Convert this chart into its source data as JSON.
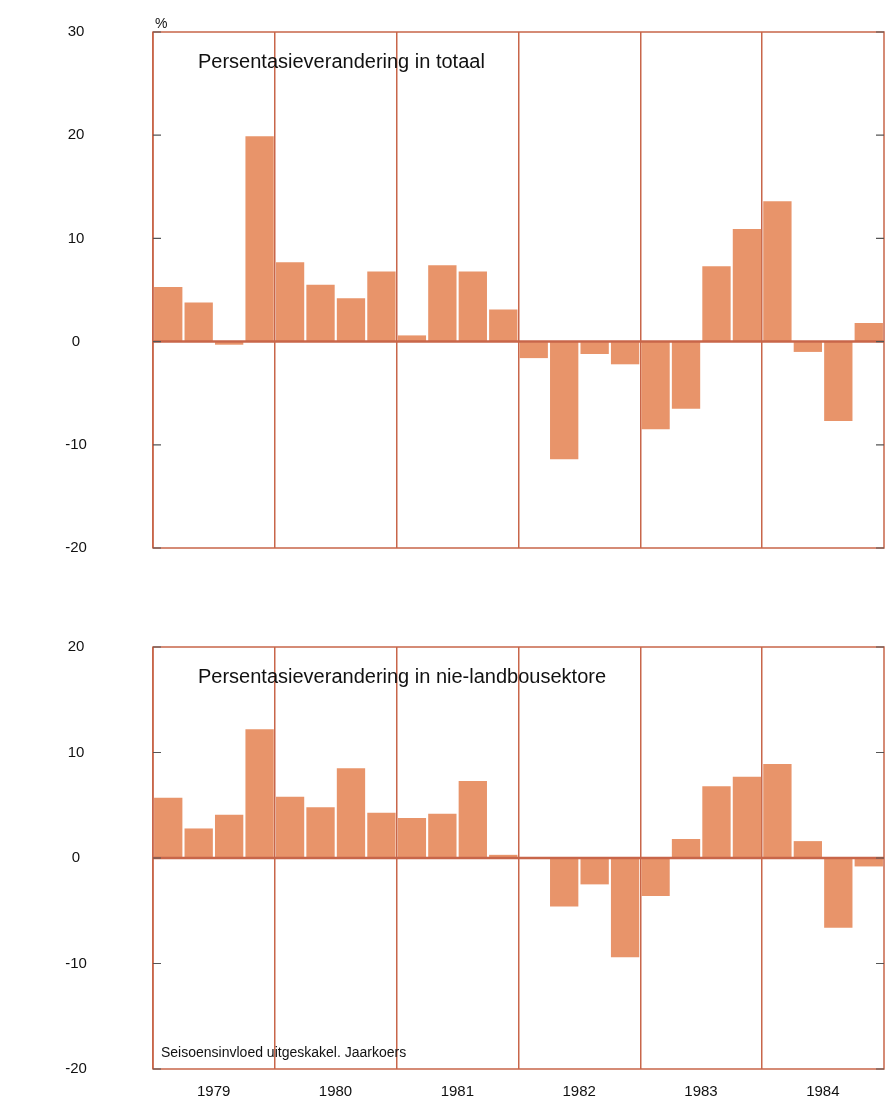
{
  "chart_data": [
    {
      "type": "bar",
      "title": "Persentasieverandering in totaal",
      "ylabel": "%",
      "categories": [
        null,
        "1979",
        null,
        null,
        null,
        "1980",
        null,
        null,
        null,
        "1981",
        null,
        null,
        null,
        "1982",
        null,
        null,
        null,
        "1983",
        null,
        null,
        null,
        "1984",
        null,
        null
      ],
      "values": [
        5.3,
        3.8,
        -0.3,
        19.9,
        7.7,
        5.5,
        4.2,
        6.8,
        0.6,
        7.4,
        6.8,
        3.1,
        -1.6,
        -11.4,
        -1.2,
        -2.2,
        -8.5,
        -6.5,
        7.3,
        10.9,
        13.6,
        -1.0,
        -7.7,
        1.8
      ],
      "color": "#e8946a",
      "ylim": [
        -20,
        30
      ],
      "yticks": [
        -20,
        -10,
        0,
        10,
        20,
        30
      ],
      "grid": "x",
      "tick_labels": "y",
      "ref_lines": [
        {
          "axis": "y",
          "value": 0,
          "color": "#c8664a"
        }
      ]
    },
    {
      "type": "bar",
      "title": "Persentasieverandering in nie-landbousektore",
      "categories": [
        null,
        "1979",
        null,
        null,
        null,
        "1980",
        null,
        null,
        null,
        "1981",
        null,
        null,
        null,
        "1982",
        null,
        null,
        null,
        "1983",
        null,
        null,
        null,
        "1984",
        null,
        null
      ],
      "values": [
        5.7,
        2.8,
        4.1,
        12.2,
        5.8,
        4.8,
        8.5,
        4.3,
        3.8,
        4.2,
        7.3,
        0.3,
        0,
        -4.6,
        -2.5,
        -9.4,
        -3.6,
        1.8,
        6.8,
        7.7,
        8.9,
        1.6,
        -6.6,
        -0.8
      ],
      "color": "#e8946a",
      "ylim": [
        -20,
        20
      ],
      "yticks": [
        -20,
        -10,
        0,
        10,
        20
      ],
      "grid": "x",
      "annotations": [
        "Seisoensinvloed uitgeskakel. Jaarkoers"
      ],
      "ref_lines": [
        {
          "axis": "y",
          "value": 0,
          "color": "#c8664a"
        }
      ]
    }
  ]
}
